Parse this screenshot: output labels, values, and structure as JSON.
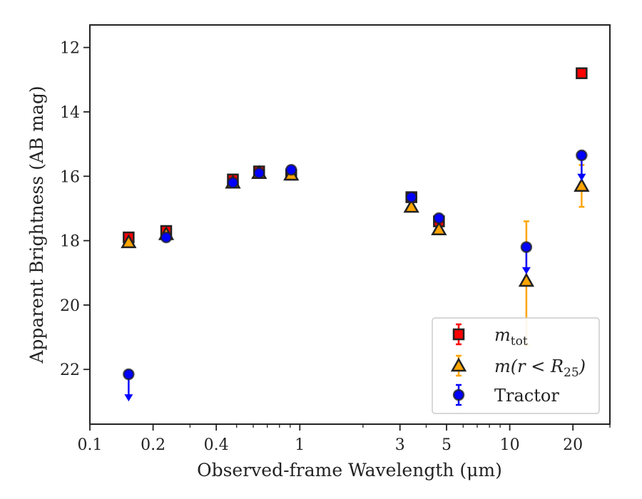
{
  "chart_data": {
    "type": "scatter",
    "title": "",
    "xlabel": "Observed-frame Wavelength (μm)",
    "ylabel": "Apparent Brightness (AB mag)",
    "x_scale": "log",
    "xlim": [
      0.1,
      30
    ],
    "ylim": [
      23.7,
      11.3
    ],
    "y_inverted": true,
    "grid": false,
    "legend_position": "lower-right",
    "x_ticks": [
      {
        "value": 0.1,
        "label": "0.1"
      },
      {
        "value": 0.2,
        "label": "0.2"
      },
      {
        "value": 0.4,
        "label": "0.4"
      },
      {
        "value": 1,
        "label": "1"
      },
      {
        "value": 3,
        "label": "3"
      },
      {
        "value": 5,
        "label": "5"
      },
      {
        "value": 10,
        "label": "10"
      },
      {
        "value": 20,
        "label": "20"
      }
    ],
    "y_ticks": [
      {
        "value": 12,
        "label": "12"
      },
      {
        "value": 14,
        "label": "14"
      },
      {
        "value": 16,
        "label": "16"
      },
      {
        "value": 18,
        "label": "18"
      },
      {
        "value": 20,
        "label": "20"
      },
      {
        "value": 22,
        "label": "22"
      }
    ],
    "series": [
      {
        "name": "m_tot",
        "legend_main": "m",
        "legend_sub": "tot",
        "marker": "square",
        "color": "#ff0000",
        "error_color": "#ff0000",
        "points": [
          {
            "x": 0.153,
            "y": 17.9,
            "err": 0.05
          },
          {
            "x": 0.231,
            "y": 17.7,
            "err": 0.05
          },
          {
            "x": 0.48,
            "y": 16.1,
            "err": 0.05
          },
          {
            "x": 0.64,
            "y": 15.85,
            "err": 0.05
          },
          {
            "x": 0.91,
            "y": 15.95,
            "err": 0.05
          },
          {
            "x": 3.4,
            "y": 16.65,
            "err": 0.05
          },
          {
            "x": 4.6,
            "y": 17.4,
            "err": 0.05
          },
          {
            "x": 22.0,
            "y": 12.8,
            "err": 0.05
          }
        ]
      },
      {
        "name": "m(r < R25)",
        "legend_main": "m(r < R",
        "legend_sub": "25",
        "legend_tail": ")",
        "marker": "triangle",
        "color": "#ffa500",
        "error_color": "#ffa500",
        "points": [
          {
            "x": 0.153,
            "y": 18.05,
            "err": 0.05
          },
          {
            "x": 0.231,
            "y": 17.8,
            "err": 0.05
          },
          {
            "x": 0.48,
            "y": 16.2,
            "err": 0.05
          },
          {
            "x": 0.64,
            "y": 15.9,
            "err": 0.05
          },
          {
            "x": 0.91,
            "y": 15.95,
            "err": 0.05
          },
          {
            "x": 3.4,
            "y": 16.95,
            "err": 0.05
          },
          {
            "x": 4.6,
            "y": 17.65,
            "err": 0.05
          },
          {
            "x": 12.0,
            "y": 19.25,
            "err_low": 1.85,
            "err_high": 2.0
          },
          {
            "x": 22.0,
            "y": 16.3,
            "err": 0.65
          }
        ]
      },
      {
        "name": "Tractor",
        "marker": "circle",
        "color": "#0000ff",
        "error_color": "#0000ff",
        "points": [
          {
            "x": 0.153,
            "y": 22.15,
            "err": 0,
            "upper_limit": true,
            "limit_to": 22.95
          },
          {
            "x": 0.231,
            "y": 17.9,
            "err": 0.05
          },
          {
            "x": 0.48,
            "y": 16.2,
            "err": 0.05
          },
          {
            "x": 0.64,
            "y": 15.9,
            "err": 0.05
          },
          {
            "x": 0.91,
            "y": 15.8,
            "err": 0.05
          },
          {
            "x": 3.4,
            "y": 16.65,
            "err": 0.05
          },
          {
            "x": 4.6,
            "y": 17.3,
            "err": 0.05
          },
          {
            "x": 12.0,
            "y": 18.2,
            "err": 0,
            "upper_limit": true,
            "limit_to": 19.0
          },
          {
            "x": 22.0,
            "y": 15.35,
            "err": 0,
            "upper_limit": true,
            "limit_to": 16.1
          }
        ]
      }
    ]
  }
}
